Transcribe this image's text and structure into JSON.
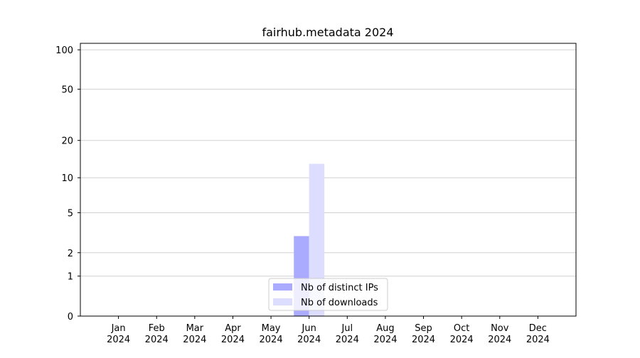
{
  "chart_data": {
    "type": "bar",
    "title": "fairhub.metadata 2024",
    "categories": [
      "Jan 2024",
      "Feb 2024",
      "Mar 2024",
      "Apr 2024",
      "May 2024",
      "Jun 2024",
      "Jul 2024",
      "Aug 2024",
      "Sep 2024",
      "Oct 2024",
      "Nov 2024",
      "Dec 2024"
    ],
    "series": [
      {
        "name": "Nb of distinct IPs",
        "color": "#aaaaff",
        "values": [
          0,
          0,
          0,
          0,
          0,
          3,
          0,
          0,
          0,
          0,
          0,
          0
        ]
      },
      {
        "name": "Nb of downloads",
        "color": "#ddddff",
        "values": [
          0,
          0,
          0,
          0,
          0,
          13,
          0,
          0,
          0,
          0,
          0,
          0
        ]
      }
    ],
    "yscale": "log1p",
    "ylim": [
      0,
      112
    ],
    "yticks": [
      0,
      1,
      2,
      5,
      10,
      20,
      50,
      100
    ],
    "grid": true,
    "legend": "lower center"
  }
}
